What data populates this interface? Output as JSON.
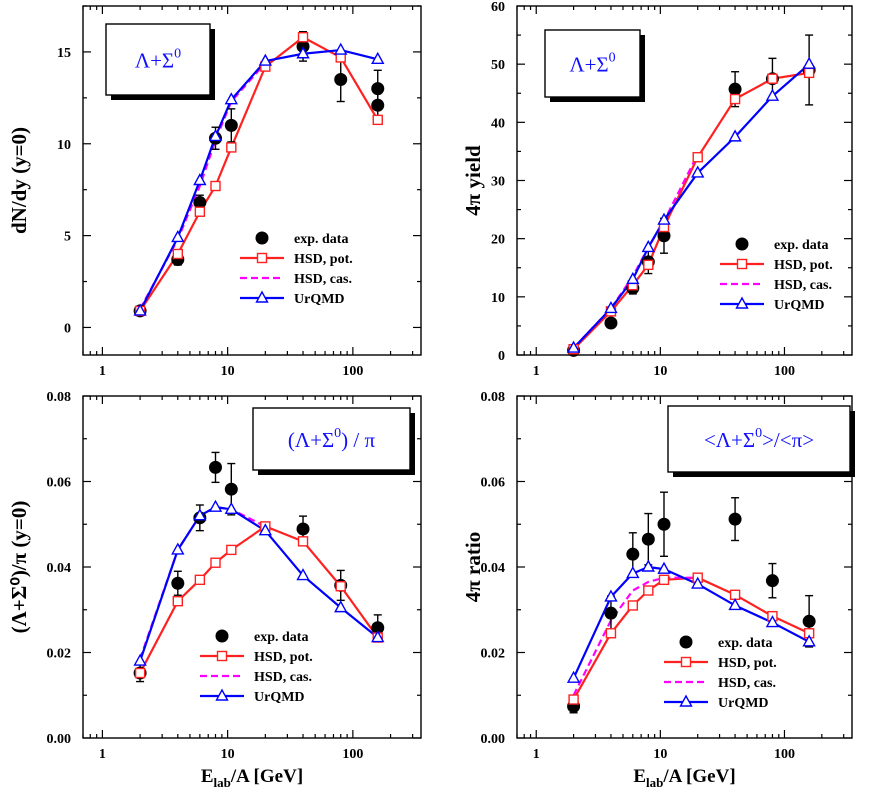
{
  "figure": {
    "xlabel": "E",
    "xlabel_sub": "lab",
    "xlabel_rest": "/A [GeV]",
    "legend": [
      "exp. data",
      "HSD, pot.",
      "HSD, cas.",
      "UrQMD"
    ],
    "colors": {
      "exp": "#000000",
      "hsd_pot": "#ff2020",
      "hsd_cas": "#ff00ff",
      "urqmd": "#0000ff",
      "box_text": "#1010ff"
    }
  },
  "chart_data": [
    {
      "id": "tl",
      "type": "line",
      "box_label": [
        "Λ+Σ",
        "0",
        ""
      ],
      "ylabel": "dN/dy (y=0)",
      "xscale": "log",
      "xlim": [
        0.7,
        350
      ],
      "ylim": [
        -1.5,
        17.5
      ],
      "xticks": [
        1,
        10,
        100
      ],
      "xticklabels": [
        "1",
        "10",
        "100"
      ],
      "yticks": [
        0,
        5,
        10,
        15
      ],
      "yticklabels": [
        "0",
        "5",
        "10",
        "15"
      ],
      "legend_position": "bottom-right",
      "series": [
        {
          "name": "exp. data",
          "x": [
            2,
            4,
            6,
            8,
            10.7,
            40,
            80,
            158,
            158
          ],
          "y": [
            0.9,
            3.7,
            6.8,
            10.3,
            11.0,
            15.3,
            13.5,
            13.0,
            12.1
          ],
          "yerr": [
            0.2,
            0.3,
            0.4,
            0.6,
            0.9,
            0.8,
            1.2,
            1.0,
            0.8
          ]
        },
        {
          "name": "HSD, pot.",
          "x": [
            2,
            4,
            6,
            8,
            10.7,
            20,
            40,
            80,
            158
          ],
          "y": [
            0.9,
            4.0,
            6.3,
            7.7,
            9.8,
            14.2,
            15.8,
            14.7,
            11.3
          ]
        },
        {
          "name": "HSD, cas.",
          "x": [
            2,
            4,
            6,
            8,
            10.7,
            20
          ],
          "y": [
            1.0,
            4.8,
            7.7,
            10.2,
            12.3,
            14.4
          ]
        },
        {
          "name": "UrQMD",
          "x": [
            2,
            4,
            6,
            8,
            10.7,
            20,
            40,
            80,
            158
          ],
          "y": [
            0.9,
            4.9,
            8.0,
            10.4,
            12.4,
            14.5,
            14.9,
            15.1,
            14.6
          ]
        }
      ]
    },
    {
      "id": "tr",
      "type": "line",
      "box_label": [
        "Λ+Σ",
        "0",
        ""
      ],
      "ylabel": "4π yield",
      "xscale": "log",
      "xlim": [
        0.7,
        350
      ],
      "ylim": [
        0,
        60
      ],
      "xticks": [
        1,
        10,
        100
      ],
      "xticklabels": [
        "1",
        "10",
        "100"
      ],
      "yticks": [
        0,
        10,
        20,
        30,
        40,
        50,
        60
      ],
      "yticklabels": [
        "0",
        "10",
        "20",
        "30",
        "40",
        "50",
        "60"
      ],
      "legend_position": "bottom-right",
      "series": [
        {
          "name": "exp. data",
          "x": [
            2,
            4,
            6,
            8,
            10.7,
            40,
            80,
            158
          ],
          "y": [
            0.8,
            5.5,
            11.5,
            16.0,
            20.5,
            45.7,
            47.5,
            49.0
          ],
          "yerr": [
            0.2,
            0.6,
            1.0,
            2.0,
            3.0,
            3.0,
            3.5,
            6.0
          ]
        },
        {
          "name": "HSD, pot.",
          "x": [
            2,
            4,
            6,
            8,
            10.7,
            20,
            40,
            80,
            158
          ],
          "y": [
            1.0,
            7.5,
            12.0,
            15.5,
            22.0,
            34.0,
            44.0,
            47.5,
            48.5
          ]
        },
        {
          "name": "HSD, cas.",
          "x": [
            2,
            4,
            6,
            8,
            10.7,
            20
          ],
          "y": [
            1.2,
            8.0,
            13.5,
            18.5,
            23.0,
            34.5
          ]
        },
        {
          "name": "UrQMD",
          "x": [
            2,
            4,
            6,
            8,
            10.7,
            20,
            40,
            80,
            158
          ],
          "y": [
            1.2,
            8.0,
            13.0,
            18.5,
            23.2,
            31.3,
            37.5,
            44.5,
            50.0
          ]
        }
      ]
    },
    {
      "id": "bl",
      "type": "line",
      "box_label": [
        "(Λ+Σ",
        "0",
        ") / π"
      ],
      "ylabel": "(Λ+Σ⁰)/π (y=0)",
      "xscale": "log",
      "xlim": [
        0.7,
        350
      ],
      "ylim": [
        0,
        0.08
      ],
      "xticks": [
        1,
        10,
        100
      ],
      "xticklabels": [
        "1",
        "10",
        "100"
      ],
      "yticks": [
        0,
        0.02,
        0.04,
        0.06,
        0.08
      ],
      "yticklabels": [
        "0.00",
        "0.02",
        "0.04",
        "0.06",
        "0.08"
      ],
      "legend_position": "bottom-right",
      "series": [
        {
          "name": "exp. data",
          "x": [
            2,
            4,
            6,
            8,
            10.7,
            40,
            80,
            158
          ],
          "y": [
            0.0152,
            0.0362,
            0.0515,
            0.0633,
            0.0582,
            0.0489,
            0.0357,
            0.0258
          ],
          "yerr": [
            0.002,
            0.0028,
            0.003,
            0.0035,
            0.006,
            0.003,
            0.0035,
            0.003
          ]
        },
        {
          "name": "HSD, pot.",
          "x": [
            2,
            4,
            6,
            8,
            10.7,
            20,
            40,
            80,
            158
          ],
          "y": [
            0.0152,
            0.032,
            0.037,
            0.041,
            0.044,
            0.0495,
            0.046,
            0.0355,
            0.0235
          ]
        },
        {
          "name": "HSD, cas.",
          "x": [
            2,
            4,
            6,
            8,
            10.7,
            20
          ],
          "y": [
            0.0185,
            0.044,
            0.052,
            0.054,
            0.0535,
            0.0495
          ]
        },
        {
          "name": "UrQMD",
          "x": [
            2,
            4,
            6,
            8,
            10.7,
            20,
            40,
            80,
            158
          ],
          "y": [
            0.018,
            0.044,
            0.052,
            0.054,
            0.0535,
            0.0485,
            0.038,
            0.0305,
            0.0235
          ]
        }
      ]
    },
    {
      "id": "br",
      "type": "line",
      "box_label": [
        "<Λ+Σ",
        "0",
        ">/<π>"
      ],
      "ylabel": "4π ratio",
      "xscale": "log",
      "xlim": [
        0.7,
        350
      ],
      "ylim": [
        0,
        0.08
      ],
      "xticks": [
        1,
        10,
        100
      ],
      "xticklabels": [
        "1",
        "10",
        "100"
      ],
      "yticks": [
        0,
        0.02,
        0.04,
        0.06,
        0.08
      ],
      "yticklabels": [
        "0.00",
        "0.02",
        "0.04",
        "0.06",
        "0.08"
      ],
      "legend_position": "bottom-right",
      "series": [
        {
          "name": "exp. data",
          "x": [
            2,
            4,
            6,
            8,
            10.7,
            40,
            80,
            158
          ],
          "y": [
            0.0074,
            0.0292,
            0.043,
            0.0465,
            0.05,
            0.0512,
            0.0368,
            0.0273
          ],
          "yerr": [
            0.0015,
            0.004,
            0.005,
            0.006,
            0.0075,
            0.005,
            0.004,
            0.006
          ]
        },
        {
          "name": "HSD, pot.",
          "x": [
            2,
            4,
            6,
            8,
            10.7,
            20,
            40,
            80,
            158
          ],
          "y": [
            0.009,
            0.0245,
            0.031,
            0.0345,
            0.037,
            0.0375,
            0.0335,
            0.0285,
            0.0245
          ]
        },
        {
          "name": "HSD, cas.",
          "x": [
            2,
            4,
            6,
            8,
            10.7,
            20
          ],
          "y": [
            0.01,
            0.0275,
            0.0345,
            0.0365,
            0.0375,
            0.0375
          ]
        },
        {
          "name": "UrQMD",
          "x": [
            2,
            4,
            6,
            8,
            10.7,
            20,
            40,
            80,
            158
          ],
          "y": [
            0.014,
            0.033,
            0.0385,
            0.04,
            0.0395,
            0.036,
            0.031,
            0.027,
            0.0225
          ]
        }
      ]
    }
  ]
}
